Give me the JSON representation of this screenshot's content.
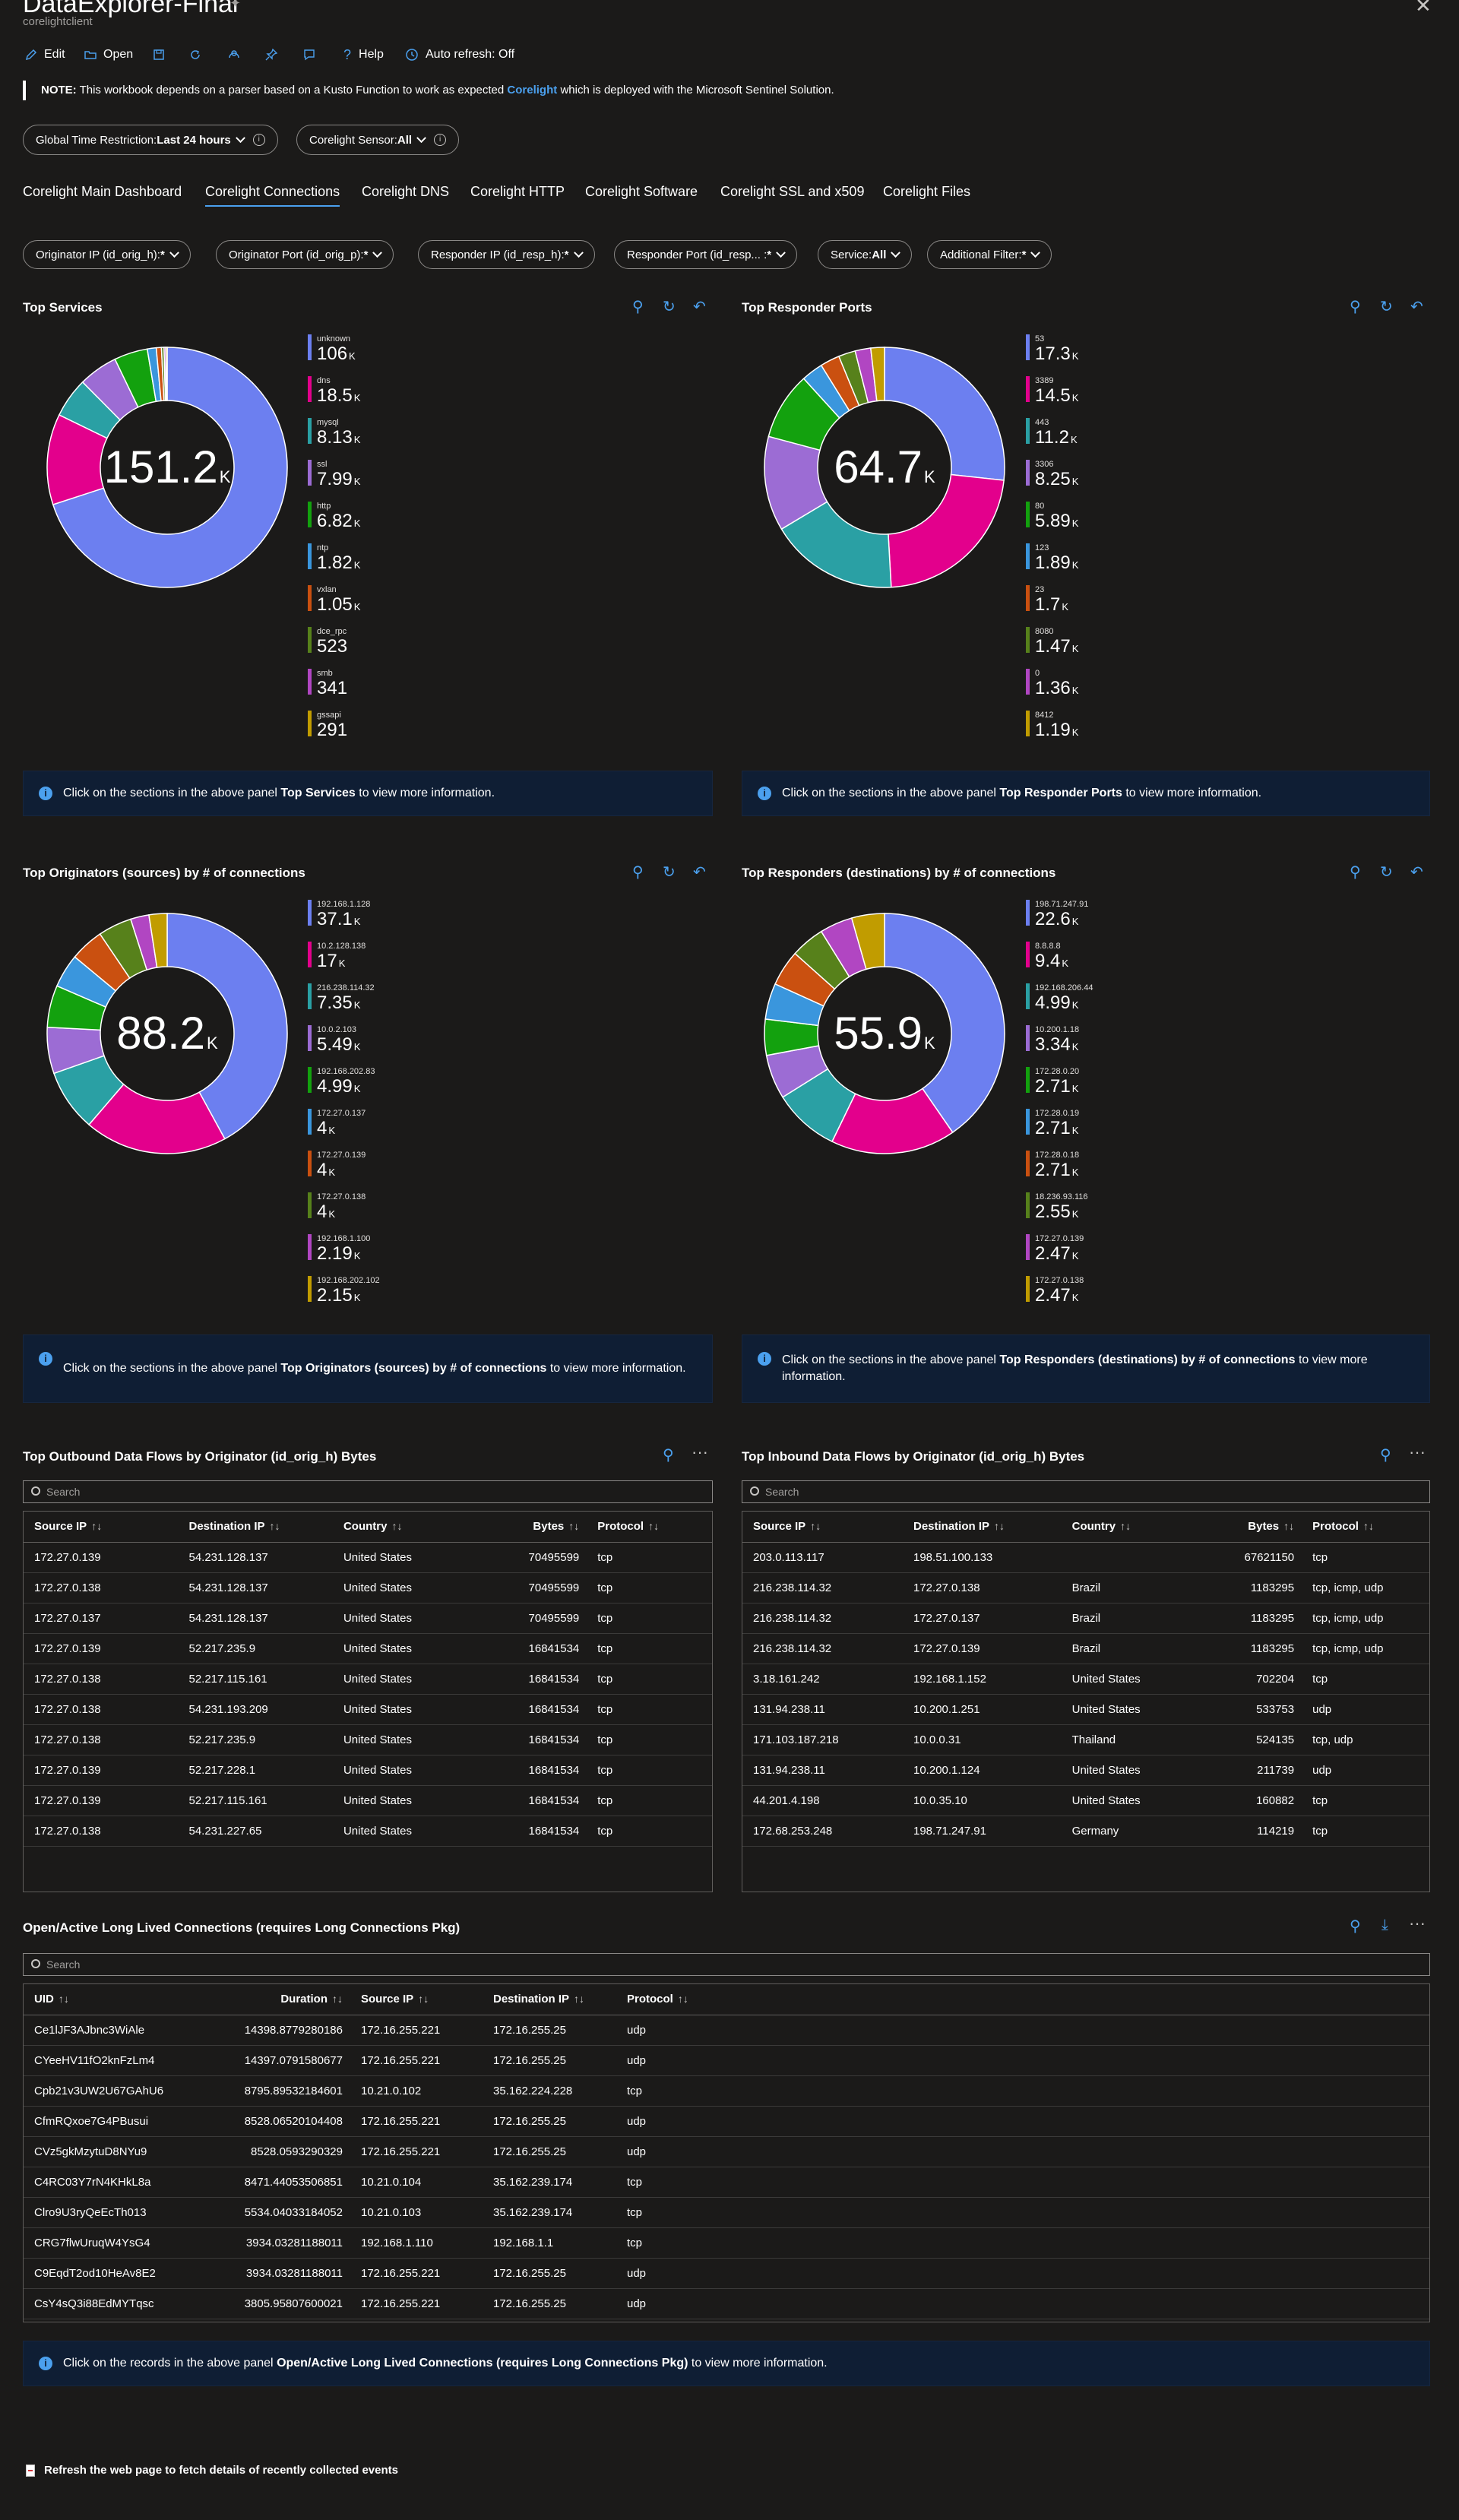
{
  "header": {
    "title": "DataExplorer-Final",
    "subtitle": "corelightclient",
    "toolbar": {
      "edit": "Edit",
      "open": "Open",
      "help": "Help",
      "auto_refresh": "Auto refresh: Off"
    }
  },
  "note": {
    "label": "NOTE:",
    "text_before": "This workbook depends on a parser based on a Kusto Function to work as expected",
    "link": "Corelight",
    "text_after": "which is deployed with the Microsoft Sentinel Solution."
  },
  "global_params": {
    "time_label": "Global Time Restriction: ",
    "time_value": "Last 24 hours",
    "sensor_label": "Corelight Sensor: ",
    "sensor_value": "All"
  },
  "tabs": [
    {
      "label": "Corelight Main Dashboard"
    },
    {
      "label": "Corelight Connections"
    },
    {
      "label": "Corelight DNS"
    },
    {
      "label": "Corelight HTTP"
    },
    {
      "label": "Corelight Software"
    },
    {
      "label": "Corelight SSL and x509"
    },
    {
      "label": "Corelight Files"
    }
  ],
  "active_tab": "Corelight Connections",
  "filters": [
    {
      "label": "Originator IP (id_orig_h): ",
      "value": "*"
    },
    {
      "label": "Originator Port (id_orig_p): ",
      "value": "*"
    },
    {
      "label": "Responder IP (id_resp_h): ",
      "value": "*"
    },
    {
      "label": "Responder Port (id_resp... : ",
      "value": "*"
    },
    {
      "label": "Service: ",
      "value": "All"
    },
    {
      "label": "Additional Filter: ",
      "value": "*"
    }
  ],
  "colors": {
    "palette": [
      "#6c7ff0",
      "#e3008c",
      "#2aa0a4",
      "#9c6cd4",
      "#13a10e",
      "#3a96dd",
      "#ca5010",
      "#57811b",
      "#b146c2",
      "#c19c00"
    ],
    "accent": "#4ba0ee",
    "info_bg": "#0f1e34"
  },
  "panels": {
    "top_services": {
      "title": "Top Services",
      "center": "151.2",
      "center_unit": "K",
      "info_before": "Click on the sections in the above panel",
      "info_bold": "Top Services",
      "info_after": "to view more information."
    },
    "top_responder_ports": {
      "title": "Top Responder Ports",
      "center": "64.7",
      "center_unit": "K",
      "info_before": "Click on the sections in the above panel",
      "info_bold": "Top Responder Ports",
      "info_after": "to view more information."
    },
    "top_originators": {
      "title": "Top Originators (sources) by # of connections",
      "center": "88.2",
      "center_unit": "K",
      "info_before": "Click on the sections in the above panel",
      "info_bold": "Top Originators (sources) by # of connections",
      "info_after": "to view more information."
    },
    "top_responders": {
      "title": "Top Responders (destinations) by # of connections",
      "center": "55.9",
      "center_unit": "K",
      "info_before": "Click on the sections in the above panel",
      "info_bold": "Top Responders (destinations) by # of connections",
      "info_after": "to view more information."
    }
  },
  "chart_data": [
    {
      "type": "pie",
      "title": "Top Services",
      "categories": [
        "unknown",
        "dns",
        "mysql",
        "ssl",
        "http",
        "ntp",
        "vxlan",
        "dce_rpc",
        "smb",
        "gssapi"
      ],
      "display_values": [
        "106",
        "18.5",
        "8.13",
        "7.99",
        "6.82",
        "1.82",
        "1.05",
        "523",
        "341",
        "291"
      ],
      "display_units": [
        "K",
        "K",
        "K",
        "K",
        "K",
        "K",
        "K",
        "",
        "",
        ""
      ],
      "values": [
        106000,
        18500,
        8130,
        7990,
        6820,
        1820,
        1050,
        523,
        341,
        291
      ]
    },
    {
      "type": "pie",
      "title": "Top Responder Ports",
      "categories": [
        "53",
        "3389",
        "443",
        "3306",
        "80",
        "123",
        "23",
        "8080",
        "0",
        "8412"
      ],
      "display_values": [
        "17.3",
        "14.5",
        "11.2",
        "8.25",
        "5.89",
        "1.89",
        "1.7",
        "1.47",
        "1.36",
        "1.19"
      ],
      "display_units": [
        "K",
        "K",
        "K",
        "K",
        "K",
        "K",
        "K",
        "K",
        "K",
        "K"
      ],
      "values": [
        17300,
        14500,
        11200,
        8250,
        5890,
        1890,
        1700,
        1470,
        1360,
        1190
      ]
    },
    {
      "type": "pie",
      "title": "Top Originators (sources) by # of connections",
      "categories": [
        "192.168.1.128",
        "10.2.128.138",
        "216.238.114.32",
        "10.0.2.103",
        "192.168.202.83",
        "172.27.0.137",
        "172.27.0.139",
        "172.27.0.138",
        "192.168.1.100",
        "192.168.202.102"
      ],
      "display_values": [
        "37.1",
        "17",
        "7.35",
        "5.49",
        "4.99",
        "4",
        "4",
        "4",
        "2.19",
        "2.15"
      ],
      "display_units": [
        "K",
        "K",
        "K",
        "K",
        "K",
        "K",
        "K",
        "K",
        "K",
        "K"
      ],
      "values": [
        37100,
        17000,
        7350,
        5490,
        4990,
        4000,
        4000,
        4000,
        2190,
        2150
      ]
    },
    {
      "type": "pie",
      "title": "Top Responders (destinations) by # of connections",
      "categories": [
        "198.71.247.91",
        "8.8.8.8",
        "192.168.206.44",
        "10.200.1.18",
        "172.28.0.20",
        "172.28.0.19",
        "172.28.0.18",
        "18.236.93.116",
        "172.27.0.139",
        "172.27.0.138"
      ],
      "display_values": [
        "22.6",
        "9.4",
        "4.99",
        "3.34",
        "2.71",
        "2.71",
        "2.71",
        "2.55",
        "2.47",
        "2.47"
      ],
      "display_units": [
        "K",
        "K",
        "K",
        "K",
        "K",
        "K",
        "K",
        "K",
        "K",
        "K"
      ],
      "values": [
        22600,
        9400,
        4990,
        3340,
        2710,
        2710,
        2710,
        2550,
        2470,
        2470
      ]
    }
  ],
  "outbound": {
    "title": "Top Outbound Data Flows by Originator (id_orig_h) Bytes",
    "search_placeholder": "Search",
    "columns": [
      "Source IP",
      "Destination IP",
      "Country",
      "Bytes",
      "Protocol"
    ],
    "rows": [
      [
        "172.27.0.139",
        "54.231.128.137",
        "United States",
        "70495599",
        "tcp"
      ],
      [
        "172.27.0.138",
        "54.231.128.137",
        "United States",
        "70495599",
        "tcp"
      ],
      [
        "172.27.0.137",
        "54.231.128.137",
        "United States",
        "70495599",
        "tcp"
      ],
      [
        "172.27.0.139",
        "52.217.235.9",
        "United States",
        "16841534",
        "tcp"
      ],
      [
        "172.27.0.138",
        "52.217.115.161",
        "United States",
        "16841534",
        "tcp"
      ],
      [
        "172.27.0.138",
        "54.231.193.209",
        "United States",
        "16841534",
        "tcp"
      ],
      [
        "172.27.0.138",
        "52.217.235.9",
        "United States",
        "16841534",
        "tcp"
      ],
      [
        "172.27.0.139",
        "52.217.228.1",
        "United States",
        "16841534",
        "tcp"
      ],
      [
        "172.27.0.139",
        "52.217.115.161",
        "United States",
        "16841534",
        "tcp"
      ],
      [
        "172.27.0.138",
        "54.231.227.65",
        "United States",
        "16841534",
        "tcp"
      ]
    ]
  },
  "inbound": {
    "title": "Top Inbound Data Flows by Originator (id_orig_h) Bytes",
    "search_placeholder": "Search",
    "columns": [
      "Source IP",
      "Destination IP",
      "Country",
      "Bytes",
      "Protocol"
    ],
    "rows": [
      [
        "203.0.113.117",
        "198.51.100.133",
        "",
        "67621150",
        "tcp"
      ],
      [
        "216.238.114.32",
        "172.27.0.138",
        "Brazil",
        "1183295",
        "tcp, icmp, udp"
      ],
      [
        "216.238.114.32",
        "172.27.0.137",
        "Brazil",
        "1183295",
        "tcp, icmp, udp"
      ],
      [
        "216.238.114.32",
        "172.27.0.139",
        "Brazil",
        "1183295",
        "tcp, icmp, udp"
      ],
      [
        "3.18.161.242",
        "192.168.1.152",
        "United States",
        "702204",
        "tcp"
      ],
      [
        "131.94.238.11",
        "10.200.1.251",
        "United States",
        "533753",
        "udp"
      ],
      [
        "171.103.187.218",
        "10.0.0.31",
        "Thailand",
        "524135",
        "tcp, udp"
      ],
      [
        "131.94.238.11",
        "10.200.1.124",
        "United States",
        "211739",
        "udp"
      ],
      [
        "44.201.4.198",
        "10.0.35.10",
        "United States",
        "160882",
        "tcp"
      ],
      [
        "172.68.253.248",
        "198.71.247.91",
        "Germany",
        "114219",
        "tcp"
      ]
    ]
  },
  "long_conn": {
    "title": "Open/Active Long Lived Connections (requires Long Connections Pkg)",
    "search_placeholder": "Search",
    "columns": [
      "UID",
      "Duration",
      "Source IP",
      "Destination IP",
      "Protocol"
    ],
    "rows": [
      [
        "Ce1lJF3AJbnc3WiAle",
        "14398.8779280186",
        "172.16.255.221",
        "172.16.255.25",
        "udp"
      ],
      [
        "CYeeHV11fO2knFzLm4",
        "14397.0791580677",
        "172.16.255.221",
        "172.16.255.25",
        "udp"
      ],
      [
        "Cpb21v3UW2U67GAhU6",
        "8795.89532184601",
        "10.21.0.102",
        "35.162.224.228",
        "tcp"
      ],
      [
        "CfmRQxoe7G4PBusui",
        "8528.06520104408",
        "172.16.255.221",
        "172.16.255.25",
        "udp"
      ],
      [
        "CVz5gkMzytuD8NYu9",
        "8528.0593290329",
        "172.16.255.221",
        "172.16.255.25",
        "udp"
      ],
      [
        "C4RC03Y7rN4KHkL8a",
        "8471.44053506851",
        "10.21.0.104",
        "35.162.239.174",
        "tcp"
      ],
      [
        "Clro9U3ryQeEcTh013",
        "5534.04033184052",
        "10.21.0.103",
        "35.162.239.174",
        "tcp"
      ],
      [
        "CRG7flwUruqW4YsG4",
        "3934.03281188011",
        "192.168.1.110",
        "192.168.1.1",
        "tcp"
      ],
      [
        "C9EqdT2od10HeAv8E2",
        "3934.03281188011",
        "172.16.255.221",
        "172.16.255.25",
        "udp"
      ],
      [
        "CsY4sQ3i88EdMYTqsc",
        "3805.95807600021",
        "172.16.255.221",
        "172.16.255.25",
        "udp"
      ]
    ],
    "info_before": "Click on the records in the above panel",
    "info_bold": "Open/Active Long Lived Connections (requires Long Connections Pkg)",
    "info_after": "to view more information."
  },
  "footer": {
    "text": "Refresh the web page to fetch details of recently collected events"
  }
}
